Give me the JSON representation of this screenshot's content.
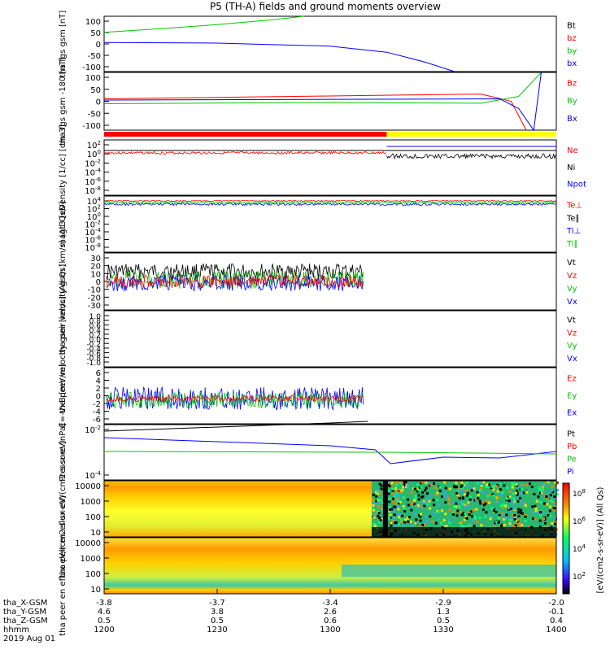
{
  "title": "P5 (TH-A) fields and ground moments overview",
  "colors": {
    "black": "#000000",
    "red": "#ff0000",
    "green": "#00c800",
    "blue": "#0000ff",
    "yellow": "#ffff00"
  },
  "time_axis": {
    "ticks": [
      "1200",
      "1230",
      "1300",
      "1330",
      "1400"
    ],
    "rows": [
      {
        "label": "tha_X-GSM",
        "values": [
          "-3.8",
          "-3.7",
          "-3.4",
          "-2.9",
          "-2.0"
        ]
      },
      {
        "label": "tha_Y-GSM",
        "values": [
          "4.6",
          "3.8",
          "2.6",
          "1.3",
          "-0.1"
        ]
      },
      {
        "label": "tha_Z-GSM",
        "values": [
          "0.5",
          "0.5",
          "0.6",
          "0.5",
          "0.4"
        ]
      },
      {
        "label": "hhmm",
        "values": [
          "1200",
          "1230",
          "1300",
          "1330",
          "1400"
        ]
      }
    ],
    "date": "2019 Aug 01"
  },
  "spectrogram_colorbar": {
    "label": "[eV/(cm2-s-sr-eV)] (All Qs)",
    "ticks": [
      "10^8",
      "10^6",
      "10^4",
      "10^2"
    ]
  },
  "chart_data": [
    {
      "type": "line",
      "panel": "fgs",
      "ylabel": "tha fgs gsm [nT]",
      "ylim": [
        -100,
        100
      ],
      "yticks": [
        "100",
        "50",
        "0",
        "-50",
        "-100"
      ],
      "legend": [
        "Bt",
        "bz",
        "by",
        "bx"
      ],
      "series": [
        {
          "name": "by",
          "x": [
            "1200",
            "1215",
            "1230",
            "1245",
            "1253"
          ],
          "values": [
            42,
            55,
            70,
            88,
            100
          ]
        },
        {
          "name": "bx",
          "x": [
            "1200",
            "1230",
            "1300",
            "1315",
            "1325",
            "1333"
          ],
          "values": [
            5,
            3,
            -8,
            -30,
            -65,
            -100
          ]
        }
      ]
    },
    {
      "type": "line",
      "panel": "fgs-dsl",
      "ylabel": "tha fgs gsm -180 [nT]",
      "ylim": [
        -120,
        120
      ],
      "yticks": [
        "100",
        "50",
        "0",
        "-50",
        "-100"
      ],
      "legend": [
        "Bz",
        "By",
        "Bx"
      ],
      "series": [
        {
          "name": "Bz",
          "x": [
            "1200",
            "1300",
            "1340",
            "1348",
            "1352"
          ],
          "values": [
            10,
            22,
            30,
            0,
            -120
          ]
        },
        {
          "name": "By",
          "x": [
            "1200",
            "1300",
            "1340",
            "1350",
            "1356"
          ],
          "values": [
            -10,
            -5,
            -8,
            20,
            120
          ]
        },
        {
          "name": "Bx",
          "x": [
            "1200",
            "1300",
            "1345",
            "1350",
            "1354",
            "1355",
            "1356"
          ],
          "values": [
            5,
            8,
            10,
            -30,
            -120,
            0,
            120
          ]
        }
      ]
    },
    {
      "type": "line",
      "panel": "density",
      "ylabel": "Density [1/cc] [cm-3]",
      "yscale": "log",
      "yticks": [
        "10^2",
        "10^0",
        "10^-2",
        "10^-4",
        "10^-6",
        "10^-8"
      ],
      "legend": [
        "Ne",
        "Ni",
        "Npot"
      ]
    },
    {
      "type": "line",
      "panel": "temperature",
      "ylabel": "magt3 [eV]",
      "yscale": "log",
      "yticks": [
        "10^4",
        "10^2",
        "10^0",
        "10^-2",
        "10^-4",
        "10^-6",
        "10^-8"
      ],
      "legend": [
        "Te⊥",
        "Te∥",
        "Ti⊥",
        "Ti∥"
      ]
    },
    {
      "type": "line",
      "panel": "peir-velocity",
      "ylabel": "tha peir velocity gsm [km/s] (All Qs)",
      "ylim": [
        -30,
        30
      ],
      "yticks": [
        "30",
        "20",
        "10",
        "0",
        "-10",
        "-20",
        "-30"
      ],
      "legend": [
        "Vt",
        "Vz",
        "Vy",
        "Vx"
      ]
    },
    {
      "type": "line",
      "panel": "peer-velocity",
      "ylabel": "tha peer velocity gsm [km/s] (All Qs)",
      "ylim": [
        -1,
        1
      ],
      "yticks": [
        "1.0",
        "0.8",
        "0.6",
        "0.4",
        "0.2",
        "0.0",
        "-0.2",
        "-0.4",
        "-0.6",
        "-0.8",
        "-1.0"
      ],
      "legend": [
        "Vt",
        "Vz",
        "Vy",
        "Vx"
      ]
    },
    {
      "type": "line",
      "panel": "efield",
      "ylabel": "E=-VxB [mV/m]",
      "ylim": [
        -6,
        6
      ],
      "yticks": [
        "6",
        "4",
        "2",
        "0",
        "-2",
        "-4",
        "-6"
      ],
      "legend": [
        "Ez",
        "Ey",
        "Ex"
      ]
    },
    {
      "type": "line",
      "panel": "pressure",
      "ylabel": "Pressure [nPa]",
      "yscale": "log",
      "yticks": [
        "10^-2",
        "10^-4"
      ],
      "legend": [
        "Pt",
        "Pb",
        "Pe",
        "Pi"
      ]
    },
    {
      "type": "heatmap",
      "panel": "peir-en-eflux",
      "ylabel": "tha peir en eflux eV/(cm2-s-sr-eV)",
      "yscale": "log",
      "yticks": [
        "10000",
        "1000",
        "100",
        "10"
      ]
    },
    {
      "type": "heatmap",
      "panel": "peer-en-eflux",
      "ylabel": "tha peer en eflux eV/(cm2-s-sr-eV)",
      "yscale": "log",
      "yticks": [
        "10000",
        "1000",
        "100",
        "10"
      ]
    }
  ]
}
